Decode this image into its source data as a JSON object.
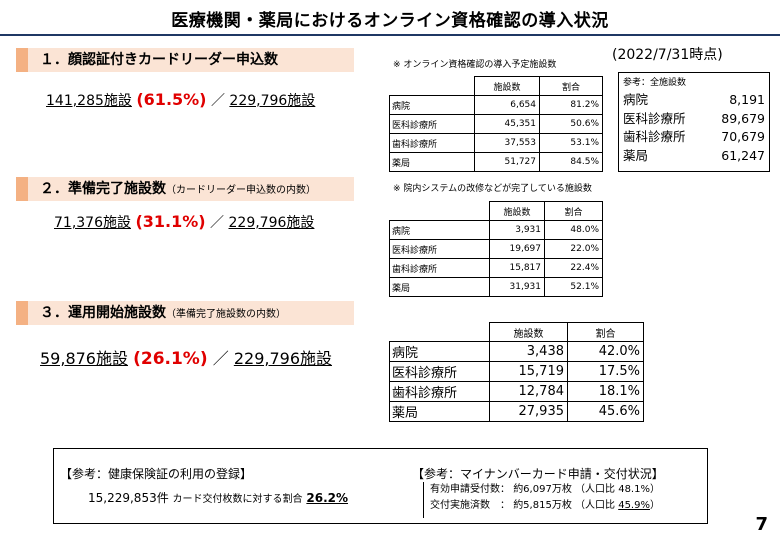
{
  "title": "医療機関・薬局におけるオンライン資格確認の導入状況",
  "as_of": "(2022/7/31時点)",
  "sections": [
    {
      "heading": "１．顔認証付きカードリーダー申込数",
      "heading_sub": "",
      "count": "141,285施設",
      "pct": "(61.5%)",
      "sep": "／",
      "total": "229,796施設",
      "table_note": "※ オンライン資格確認の導入予定施設数",
      "table": {
        "headers": [
          "施設数",
          "割合"
        ],
        "rows": [
          {
            "label": "病院",
            "count": "6,654",
            "pct": "81.2%"
          },
          {
            "label": "医科診療所",
            "count": "45,351",
            "pct": "50.6%"
          },
          {
            "label": "歯科診療所",
            "count": "37,553",
            "pct": "53.1%"
          },
          {
            "label": "薬局",
            "count": "51,727",
            "pct": "84.5%"
          }
        ]
      }
    },
    {
      "heading": "２．準備完了施設数",
      "heading_sub": "（カードリーダー申込数の内数）",
      "count": "71,376施設",
      "pct": "(31.1%)",
      "sep": "／",
      "total": "229,796施設",
      "table_note": "※ 院内システムの改修などが完了している施設数",
      "table": {
        "headers": [
          "施設数",
          "割合"
        ],
        "rows": [
          {
            "label": "病院",
            "count": "3,931",
            "pct": "48.0%"
          },
          {
            "label": "医科診療所",
            "count": "19,697",
            "pct": "22.0%"
          },
          {
            "label": "歯科診療所",
            "count": "15,817",
            "pct": "22.4%"
          },
          {
            "label": "薬局",
            "count": "31,931",
            "pct": "52.1%"
          }
        ]
      }
    },
    {
      "heading": "３．運用開始施設数",
      "heading_sub": "（準備完了施設数の内数）",
      "count": "59,876施設",
      "pct": "(26.1%)",
      "sep": "／",
      "total": "229,796施設",
      "table_note": "",
      "table": {
        "headers": [
          "施設数",
          "割合"
        ],
        "rows": [
          {
            "label": "病院",
            "count": "3,438",
            "pct": "42.0%"
          },
          {
            "label": "医科診療所",
            "count": "15,719",
            "pct": "17.5%"
          },
          {
            "label": "歯科診療所",
            "count": "12,784",
            "pct": "18.1%"
          },
          {
            "label": "薬局",
            "count": "27,935",
            "pct": "45.6%"
          }
        ]
      }
    }
  ],
  "reference": {
    "title": "参考：全施設数",
    "rows": [
      {
        "label": "病院",
        "value": "8,191"
      },
      {
        "label": "医科診療所",
        "value": "89,679"
      },
      {
        "label": "歯科診療所",
        "value": "70,679"
      },
      {
        "label": "薬局",
        "value": "61,247"
      }
    ]
  },
  "bottom": {
    "left_title": "【参考：健康保険証の利用の登録】",
    "left_count": "15,229,853件",
    "left_label": "カード交付枚数に対する割合",
    "left_pct": "26.2%",
    "right_title": "【参考：マイナンバーカード申請・交付状況】",
    "right_rows": [
      {
        "label": "有効申請受付数：",
        "value": "約6,097万枚",
        "ratio_label": "（人口比",
        "ratio": "48.1%",
        "close": "）"
      },
      {
        "label": "交付実施済数　：",
        "value": "約5,815万枚",
        "ratio_label": "（人口比",
        "ratio": "45.9%",
        "close": "）"
      }
    ]
  },
  "page_number": "7",
  "colors": {
    "accent_red": "#e00000",
    "header_fill": "#fbe4d5",
    "header_tab": "#f4b183",
    "rule": "#1f3864"
  }
}
